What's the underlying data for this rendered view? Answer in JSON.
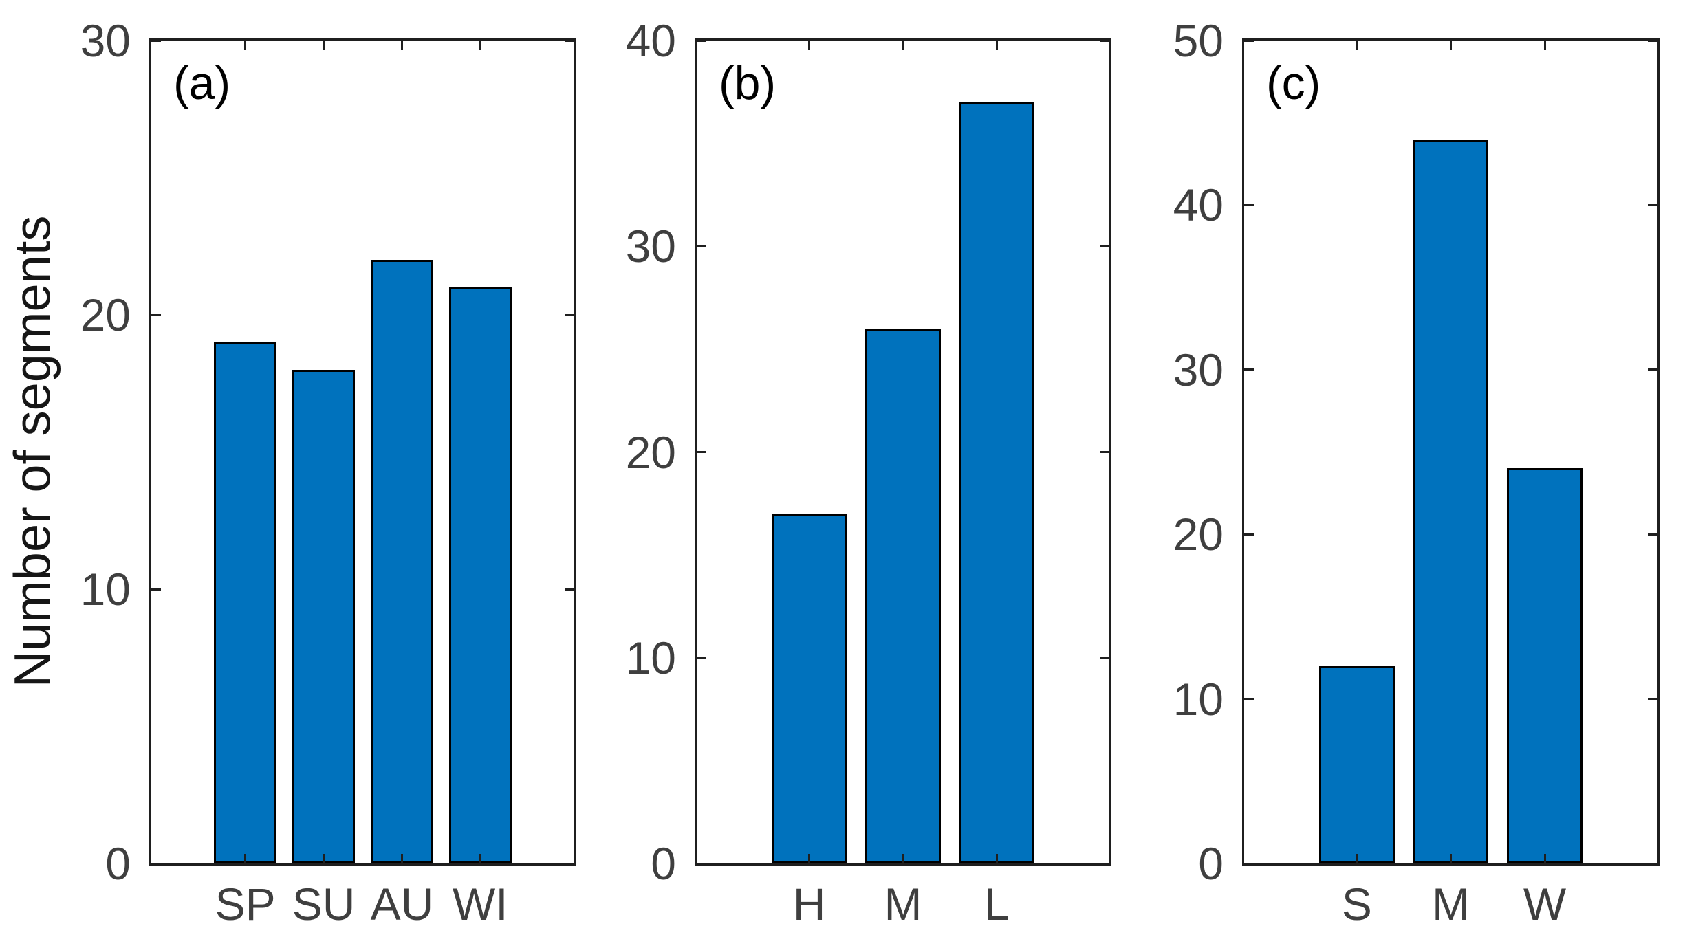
{
  "figure": {
    "ylabel": "Number of segments",
    "bar_fill_color": "#0072BD",
    "bar_edge_color": "#000000",
    "axis_line_color": "#1f1f1f",
    "tick_label_color": "#3f3f3f",
    "background_color": "#ffffff"
  },
  "chart_data": [
    {
      "type": "bar",
      "panel_label": "(a)",
      "categories": [
        "SP",
        "SU",
        "AU",
        "WI"
      ],
      "values": [
        19,
        18,
        22,
        21
      ],
      "title": "",
      "xlabel": "",
      "ylabel": "Number of segments",
      "ylim": [
        0,
        30
      ],
      "yticks": [
        0,
        10,
        20,
        30
      ],
      "grid": false,
      "legend": "none",
      "bar_color": "#0072BD"
    },
    {
      "type": "bar",
      "panel_label": "(b)",
      "categories": [
        "H",
        "M",
        "L"
      ],
      "values": [
        17,
        26,
        37
      ],
      "title": "",
      "xlabel": "",
      "ylabel": "",
      "ylim": [
        0,
        40
      ],
      "yticks": [
        0,
        10,
        20,
        30,
        40
      ],
      "grid": false,
      "legend": "none",
      "bar_color": "#0072BD"
    },
    {
      "type": "bar",
      "panel_label": "(c)",
      "categories": [
        "S",
        "M",
        "W"
      ],
      "values": [
        12,
        44,
        24
      ],
      "title": "",
      "xlabel": "",
      "ylabel": "",
      "ylim": [
        0,
        50
      ],
      "yticks": [
        0,
        10,
        20,
        30,
        40,
        50
      ],
      "grid": false,
      "legend": "none",
      "bar_color": "#0072BD"
    }
  ]
}
